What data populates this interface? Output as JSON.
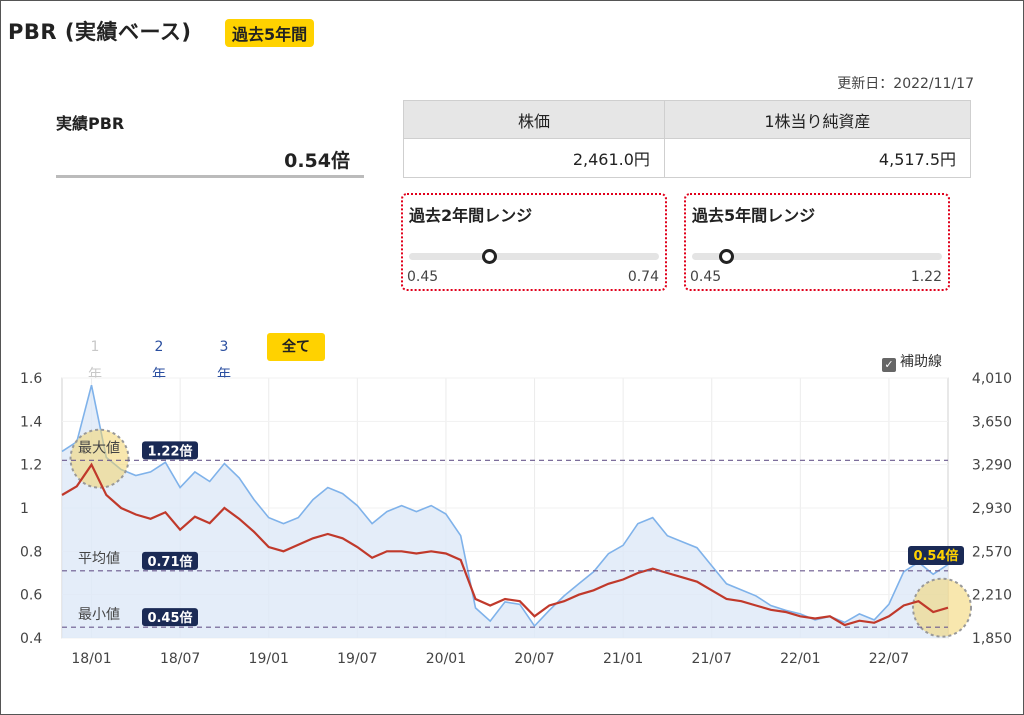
{
  "header": {
    "title": "PBR (実績ベース)",
    "badge": "過去5年間"
  },
  "updated": "更新日：2022/11/17",
  "pbr": {
    "label": "実績PBR",
    "value": "0.54倍"
  },
  "price_table": {
    "headers": [
      "株価",
      "1株当り純資産"
    ],
    "values": [
      "2,461.0円",
      "4,517.5円"
    ]
  },
  "ranges": [
    {
      "title": "過去2年間レンジ",
      "min": "0.45",
      "max": "0.74",
      "current": 0.54
    },
    {
      "title": "過去5年間レンジ",
      "min": "0.45",
      "max": "1.22",
      "current": 0.54
    }
  ],
  "tabs": [
    {
      "label": "1年",
      "state": "disabled"
    },
    {
      "label": "2年",
      "state": "link"
    },
    {
      "label": "3年",
      "state": "link"
    },
    {
      "label": "全て",
      "state": "active"
    }
  ],
  "aux_checkbox": {
    "label": "補助線",
    "checked": true
  },
  "colors": {
    "pbr_line": "#c0392b",
    "price_line": "#7fb2ea",
    "price_fill": "#dde8f7",
    "badge": "#ffd200",
    "ref_line": "#6b5a8e",
    "ref_label_bg": "#1a2a55",
    "highlight": "#f2d36b"
  },
  "chart_data": {
    "type": "line",
    "x_tick_labels": [
      "18/01",
      "18/07",
      "19/01",
      "19/07",
      "20/01",
      "20/07",
      "21/01",
      "21/07",
      "22/01",
      "22/07"
    ],
    "x_range": [
      "2017-11",
      "2022-11"
    ],
    "y_left": {
      "range": [
        0.4,
        1.6
      ],
      "ticks": [
        "0.4",
        "0.6",
        "0.8",
        "1",
        "1.2",
        "1.4",
        "1.6"
      ]
    },
    "y_right": {
      "range": [
        1850,
        4010
      ],
      "ticks": [
        "1,850",
        "2,210",
        "2,570",
        "2,930",
        "3,290",
        "3,650",
        "4,010"
      ]
    },
    "reference_lines": [
      {
        "label": "最大値",
        "value": 1.22,
        "tag": "1.22倍"
      },
      {
        "label": "平均値",
        "value": 0.71,
        "tag": "0.71倍"
      },
      {
        "label": "最小値",
        "value": 0.45,
        "tag": "0.45倍"
      }
    ],
    "current_tag": "0.54倍",
    "series": [
      {
        "axis": "left",
        "x": [
          "2017-11",
          "2017-12",
          "2018-01",
          "2018-02",
          "2018-03",
          "2018-04",
          "2018-05",
          "2018-06",
          "2018-07",
          "2018-08",
          "2018-09",
          "2018-10",
          "2018-11",
          "2018-12",
          "2019-01",
          "2019-02",
          "2019-03",
          "2019-04",
          "2019-05",
          "2019-06",
          "2019-07",
          "2019-08",
          "2019-09",
          "2019-10",
          "2019-11",
          "2019-12",
          "2020-01",
          "2020-02",
          "2020-03",
          "2020-04",
          "2020-05",
          "2020-06",
          "2020-07",
          "2020-08",
          "2020-09",
          "2020-10",
          "2020-11",
          "2020-12",
          "2021-01",
          "2021-02",
          "2021-03",
          "2021-04",
          "2021-05",
          "2021-06",
          "2021-07",
          "2021-08",
          "2021-09",
          "2021-10",
          "2021-11",
          "2021-12",
          "2022-01",
          "2022-02",
          "2022-03",
          "2022-04",
          "2022-05",
          "2022-06",
          "2022-07",
          "2022-08",
          "2022-09",
          "2022-10",
          "2022-11"
        ],
        "values": [
          1.06,
          1.1,
          1.2,
          1.06,
          1.0,
          0.97,
          0.95,
          0.98,
          0.9,
          0.96,
          0.93,
          1.0,
          0.95,
          0.89,
          0.82,
          0.8,
          0.83,
          0.86,
          0.88,
          0.86,
          0.82,
          0.77,
          0.8,
          0.8,
          0.79,
          0.8,
          0.79,
          0.76,
          0.58,
          0.55,
          0.58,
          0.57,
          0.5,
          0.55,
          0.57,
          0.6,
          0.62,
          0.65,
          0.67,
          0.7,
          0.72,
          0.7,
          0.68,
          0.66,
          0.62,
          0.58,
          0.57,
          0.55,
          0.53,
          0.52,
          0.5,
          0.49,
          0.5,
          0.46,
          0.48,
          0.47,
          0.5,
          0.55,
          0.57,
          0.52,
          0.54
        ]
      },
      {
        "axis": "right",
        "x": [
          "2017-11",
          "2017-12",
          "2018-01",
          "2018-02",
          "2018-03",
          "2018-04",
          "2018-05",
          "2018-06",
          "2018-07",
          "2018-08",
          "2018-09",
          "2018-10",
          "2018-11",
          "2018-12",
          "2019-01",
          "2019-02",
          "2019-03",
          "2019-04",
          "2019-05",
          "2019-06",
          "2019-07",
          "2019-08",
          "2019-09",
          "2019-10",
          "2019-11",
          "2019-12",
          "2020-01",
          "2020-02",
          "2020-03",
          "2020-04",
          "2020-05",
          "2020-06",
          "2020-07",
          "2020-08",
          "2020-09",
          "2020-10",
          "2020-11",
          "2020-12",
          "2021-01",
          "2021-02",
          "2021-03",
          "2021-04",
          "2021-05",
          "2021-06",
          "2021-07",
          "2021-08",
          "2021-09",
          "2021-10",
          "2021-11",
          "2021-12",
          "2022-01",
          "2022-02",
          "2022-03",
          "2022-04",
          "2022-05",
          "2022-06",
          "2022-07",
          "2022-08",
          "2022-09",
          "2022-10",
          "2022-11"
        ],
        "values": [
          3400,
          3480,
          3950,
          3350,
          3250,
          3200,
          3230,
          3310,
          3100,
          3230,
          3150,
          3300,
          3180,
          3000,
          2850,
          2800,
          2850,
          3000,
          3100,
          3050,
          2950,
          2800,
          2900,
          2950,
          2900,
          2950,
          2880,
          2700,
          2100,
          1990,
          2150,
          2130,
          1950,
          2080,
          2200,
          2300,
          2400,
          2550,
          2620,
          2800,
          2850,
          2700,
          2650,
          2600,
          2450,
          2300,
          2250,
          2200,
          2120,
          2080,
          2050,
          2000,
          2030,
          1980,
          2050,
          2000,
          2130,
          2400,
          2480,
          2380,
          2461
        ]
      }
    ]
  }
}
